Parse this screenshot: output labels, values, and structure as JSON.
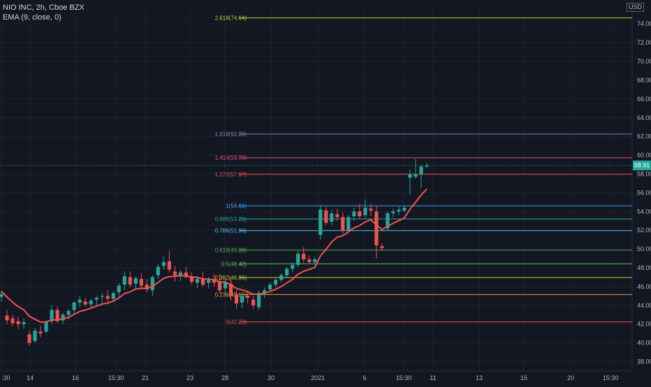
{
  "header": {
    "symbol_line": "NIO INC, 2h, Cboe BZX",
    "indicator_line": "EMA (9, close, 0)",
    "currency": "USD"
  },
  "colors": {
    "background": "#131722",
    "grid": "#1e222d",
    "up": "#26a69a",
    "down": "#ef5350",
    "ema": "#ef5350",
    "price_line": "#26a69a",
    "axis_text": "#b2b5be"
  },
  "chart_data": {
    "type": "candlestick",
    "title": "NIO INC, 2h, Cboe BZX",
    "y_axis": {
      "side": "right",
      "range": [
        37.0,
        75.8
      ],
      "ticks": [
        38,
        40,
        42,
        44,
        46,
        48,
        50,
        52,
        54,
        56,
        58,
        60,
        62,
        64,
        66,
        68,
        70,
        72,
        74
      ],
      "tick_labels": [
        "38.00",
        "40.00",
        "42.00",
        "44.00",
        "46.00",
        "48.00",
        "50.00",
        "52.00",
        "54.00",
        "56.00",
        "58.00",
        "60.00",
        "62.00",
        "64.00",
        "66.00",
        "68.00",
        "70.00",
        "72.00",
        "74.00"
      ]
    },
    "x_axis": {
      "tick_labels": [
        ":30",
        "14",
        "16",
        "15:30",
        "21",
        "23",
        "28",
        "30",
        "2021",
        "6",
        "15:30",
        "11",
        "13",
        "15",
        "20",
        "15:30"
      ]
    },
    "grid": true,
    "last_price": 58.91,
    "last_price_label": "58.91",
    "fib_levels": [
      {
        "label": "2.618(74.64)",
        "value": 74.64,
        "color": "#c5c93a"
      },
      {
        "label": "1.618(62.26)",
        "value": 62.26,
        "color": "#8e7cc3"
      },
      {
        "label": "1.414(59.73)",
        "value": 59.73,
        "color": "#e84a7f"
      },
      {
        "label": "1.272(57.97)",
        "value": 57.97,
        "color": "#ef5350"
      },
      {
        "label": "1(54.61)",
        "value": 54.61,
        "color": "#42a5f5"
      },
      {
        "label": "0.886(53.20)",
        "value": 53.2,
        "color": "#26a69a"
      },
      {
        "label": "0.786(51.96)",
        "value": 51.96,
        "color": "#4fc3f7"
      },
      {
        "label": "0.618(49.88)",
        "value": 49.88,
        "color": "#4caf50"
      },
      {
        "label": "0.5(48.42)",
        "value": 48.42,
        "color": "#66bb6a"
      },
      {
        "label": "0.382(46.96)",
        "value": 46.96,
        "color": "#d4c53a"
      },
      {
        "label": "0.236(45.15)",
        "value": 45.15,
        "color": "#f0a030"
      },
      {
        "label": "0(42.23)",
        "value": 42.23,
        "color": "#ef5350"
      }
    ],
    "candles": [
      {
        "o": 44.9,
        "h": 45.5,
        "l": 44.4,
        "c": 45.2
      },
      {
        "o": 42.9,
        "h": 43.5,
        "l": 42.0,
        "c": 42.4
      },
      {
        "o": 42.6,
        "h": 43.0,
        "l": 41.8,
        "c": 42.1
      },
      {
        "o": 42.3,
        "h": 42.8,
        "l": 41.5,
        "c": 42.0
      },
      {
        "o": 42.0,
        "h": 42.6,
        "l": 41.5,
        "c": 42.2
      },
      {
        "o": 40.9,
        "h": 41.3,
        "l": 39.7,
        "c": 40.0
      },
      {
        "o": 40.2,
        "h": 41.6,
        "l": 40.0,
        "c": 41.3
      },
      {
        "o": 41.2,
        "h": 41.8,
        "l": 40.6,
        "c": 41.0
      },
      {
        "o": 41.2,
        "h": 42.4,
        "l": 41.0,
        "c": 42.2
      },
      {
        "o": 42.3,
        "h": 44.0,
        "l": 42.0,
        "c": 43.5
      },
      {
        "o": 43.5,
        "h": 43.9,
        "l": 42.1,
        "c": 42.3
      },
      {
        "o": 42.4,
        "h": 43.2,
        "l": 42.0,
        "c": 43.0
      },
      {
        "o": 43.0,
        "h": 43.6,
        "l": 42.5,
        "c": 43.4
      },
      {
        "o": 43.5,
        "h": 44.4,
        "l": 43.1,
        "c": 44.3
      },
      {
        "o": 44.3,
        "h": 45.0,
        "l": 43.8,
        "c": 44.6
      },
      {
        "o": 44.4,
        "h": 44.8,
        "l": 43.9,
        "c": 44.1
      },
      {
        "o": 44.1,
        "h": 44.7,
        "l": 43.7,
        "c": 44.5
      },
      {
        "o": 44.6,
        "h": 45.0,
        "l": 44.0,
        "c": 44.8
      },
      {
        "o": 44.9,
        "h": 45.3,
        "l": 44.2,
        "c": 45.0
      },
      {
        "o": 45.0,
        "h": 45.6,
        "l": 44.4,
        "c": 44.7
      },
      {
        "o": 44.7,
        "h": 45.5,
        "l": 44.3,
        "c": 45.3
      },
      {
        "o": 45.4,
        "h": 46.4,
        "l": 44.9,
        "c": 46.1
      },
      {
        "o": 46.2,
        "h": 47.6,
        "l": 45.6,
        "c": 47.1
      },
      {
        "o": 47.0,
        "h": 47.6,
        "l": 45.9,
        "c": 46.2
      },
      {
        "o": 46.3,
        "h": 47.1,
        "l": 45.6,
        "c": 46.9
      },
      {
        "o": 46.8,
        "h": 47.4,
        "l": 45.8,
        "c": 46.1
      },
      {
        "o": 46.2,
        "h": 46.8,
        "l": 45.4,
        "c": 45.7
      },
      {
        "o": 45.6,
        "h": 47.2,
        "l": 45.0,
        "c": 47.0
      },
      {
        "o": 47.2,
        "h": 48.4,
        "l": 46.8,
        "c": 48.1
      },
      {
        "o": 48.2,
        "h": 49.2,
        "l": 47.8,
        "c": 48.6
      },
      {
        "o": 48.7,
        "h": 49.8,
        "l": 47.5,
        "c": 47.8
      },
      {
        "o": 47.6,
        "h": 48.2,
        "l": 46.5,
        "c": 47.2
      },
      {
        "o": 47.2,
        "h": 47.8,
        "l": 46.6,
        "c": 47.5
      },
      {
        "o": 47.5,
        "h": 48.1,
        "l": 46.9,
        "c": 47.0
      },
      {
        "o": 47.0,
        "h": 47.5,
        "l": 46.2,
        "c": 46.5
      },
      {
        "o": 46.4,
        "h": 47.1,
        "l": 45.8,
        "c": 46.8
      },
      {
        "o": 46.8,
        "h": 47.6,
        "l": 46.0,
        "c": 46.2
      },
      {
        "o": 46.4,
        "h": 47.0,
        "l": 45.8,
        "c": 46.7
      },
      {
        "o": 46.8,
        "h": 47.3,
        "l": 46.0,
        "c": 46.4
      },
      {
        "o": 46.5,
        "h": 47.3,
        "l": 45.3,
        "c": 45.6
      },
      {
        "o": 45.8,
        "h": 46.8,
        "l": 45.0,
        "c": 46.5
      },
      {
        "o": 46.3,
        "h": 47.0,
        "l": 44.5,
        "c": 45.0
      },
      {
        "o": 45.2,
        "h": 45.6,
        "l": 43.6,
        "c": 44.2
      },
      {
        "o": 44.3,
        "h": 45.2,
        "l": 43.7,
        "c": 45.0
      },
      {
        "o": 45.0,
        "h": 45.4,
        "l": 44.2,
        "c": 44.8
      },
      {
        "o": 44.6,
        "h": 45.0,
        "l": 43.6,
        "c": 44.0
      },
      {
        "o": 43.8,
        "h": 45.6,
        "l": 43.5,
        "c": 45.3
      },
      {
        "o": 45.3,
        "h": 45.9,
        "l": 44.8,
        "c": 45.6
      },
      {
        "o": 45.7,
        "h": 46.4,
        "l": 45.4,
        "c": 46.2
      },
      {
        "o": 46.2,
        "h": 46.9,
        "l": 45.9,
        "c": 46.7
      },
      {
        "o": 46.7,
        "h": 47.4,
        "l": 46.4,
        "c": 47.2
      },
      {
        "o": 47.2,
        "h": 48.1,
        "l": 47.0,
        "c": 47.9
      },
      {
        "o": 47.9,
        "h": 48.6,
        "l": 47.5,
        "c": 48.3
      },
      {
        "o": 48.3,
        "h": 49.8,
        "l": 48.1,
        "c": 49.5
      },
      {
        "o": 49.5,
        "h": 50.2,
        "l": 48.5,
        "c": 48.9
      },
      {
        "o": 48.9,
        "h": 49.3,
        "l": 48.4,
        "c": 48.6
      },
      {
        "o": 48.6,
        "h": 49.1,
        "l": 48.3,
        "c": 48.9
      },
      {
        "o": 51.5,
        "h": 54.7,
        "l": 51.0,
        "c": 54.2
      },
      {
        "o": 54.1,
        "h": 54.5,
        "l": 52.5,
        "c": 52.8
      },
      {
        "o": 52.9,
        "h": 54.2,
        "l": 52.5,
        "c": 53.8
      },
      {
        "o": 53.7,
        "h": 54.3,
        "l": 53.0,
        "c": 53.4
      },
      {
        "o": 53.4,
        "h": 53.9,
        "l": 51.6,
        "c": 52.0
      },
      {
        "o": 52.0,
        "h": 53.6,
        "l": 51.8,
        "c": 53.4
      },
      {
        "o": 53.5,
        "h": 54.4,
        "l": 53.0,
        "c": 54.0
      },
      {
        "o": 54.0,
        "h": 54.8,
        "l": 53.2,
        "c": 53.5
      },
      {
        "o": 53.6,
        "h": 55.3,
        "l": 53.3,
        "c": 54.4
      },
      {
        "o": 54.3,
        "h": 54.8,
        "l": 53.5,
        "c": 54.1
      },
      {
        "o": 54.0,
        "h": 54.6,
        "l": 49.0,
        "c": 50.4
      },
      {
        "o": 50.3,
        "h": 50.6,
        "l": 49.8,
        "c": 50.1
      },
      {
        "o": 52.2,
        "h": 54.0,
        "l": 52.0,
        "c": 53.8
      },
      {
        "o": 53.8,
        "h": 54.3,
        "l": 53.4,
        "c": 54.0
      },
      {
        "o": 54.0,
        "h": 54.5,
        "l": 53.6,
        "c": 54.2
      },
      {
        "o": 54.1,
        "h": 54.6,
        "l": 53.9,
        "c": 54.4
      },
      {
        "o": 57.6,
        "h": 58.5,
        "l": 55.8,
        "c": 58.0
      },
      {
        "o": 57.7,
        "h": 59.6,
        "l": 57.5,
        "c": 58.0
      },
      {
        "o": 58.0,
        "h": 59.0,
        "l": 56.5,
        "c": 58.8
      },
      {
        "o": 58.8,
        "h": 59.2,
        "l": 58.6,
        "c": 58.91
      }
    ]
  }
}
